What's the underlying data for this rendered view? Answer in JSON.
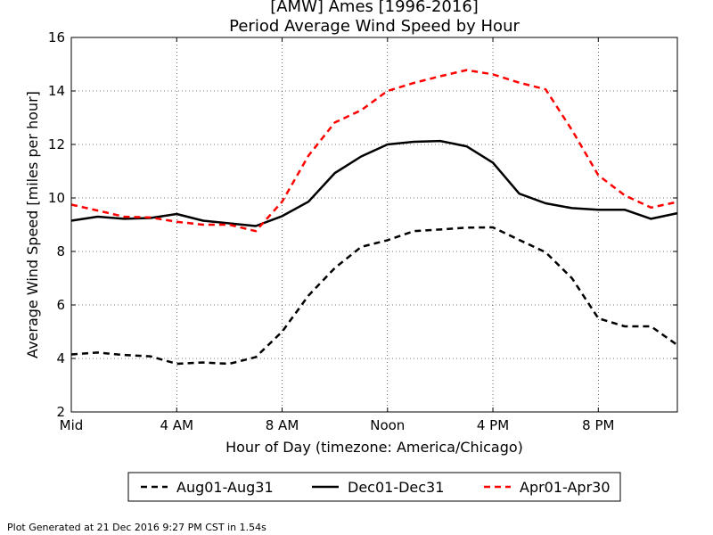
{
  "chart_data": {
    "type": "line",
    "title": "[AMW] Ames [1996-2016]",
    "subtitle": "Period Average Wind Speed by Hour",
    "xlabel": "Hour of Day (timezone: America/Chicago)",
    "ylabel": "Average Wind Speed [miles per hour]",
    "xlim": [
      0,
      23
    ],
    "ylim": [
      2,
      16
    ],
    "x": [
      0,
      1,
      2,
      3,
      4,
      5,
      6,
      7,
      8,
      9,
      10,
      11,
      12,
      13,
      14,
      15,
      16,
      17,
      18,
      19,
      20,
      21,
      22,
      23
    ],
    "xticks": [
      {
        "value": 0,
        "label": "Mid"
      },
      {
        "value": 4,
        "label": "4 AM"
      },
      {
        "value": 8,
        "label": "8 AM"
      },
      {
        "value": 12,
        "label": "Noon"
      },
      {
        "value": 16,
        "label": "4 PM"
      },
      {
        "value": 20,
        "label": "8 PM"
      }
    ],
    "yticks": [
      2,
      4,
      6,
      8,
      10,
      12,
      14,
      16
    ],
    "grid": true,
    "legend_position": "bottom",
    "series": [
      {
        "name": "Aug01-Aug31",
        "color": "#000000",
        "style": "dashed",
        "values": [
          4.15,
          4.22,
          4.13,
          4.08,
          3.8,
          3.85,
          3.8,
          4.05,
          5.0,
          6.35,
          7.38,
          8.17,
          8.42,
          8.76,
          8.82,
          8.89,
          8.9,
          8.43,
          7.97,
          7.0,
          5.5,
          5.2,
          5.2,
          4.5
        ]
      },
      {
        "name": "Dec01-Dec31",
        "color": "#000000",
        "style": "solid",
        "values": [
          9.15,
          9.3,
          9.22,
          9.25,
          9.4,
          9.15,
          9.05,
          8.95,
          9.32,
          9.86,
          10.93,
          11.55,
          12.0,
          12.1,
          12.13,
          11.93,
          11.32,
          10.16,
          9.8,
          9.62,
          9.56,
          9.56,
          9.22,
          9.43
        ]
      },
      {
        "name": "Apr01-Apr30",
        "color": "#ff0000",
        "style": "dashed",
        "values": [
          9.75,
          9.53,
          9.3,
          9.27,
          9.11,
          9.0,
          9.0,
          8.76,
          9.86,
          11.58,
          12.82,
          13.28,
          14.0,
          14.3,
          14.55,
          14.78,
          14.62,
          14.31,
          14.06,
          12.54,
          10.85,
          10.1,
          9.64,
          9.85
        ]
      }
    ]
  },
  "footer": "Plot Generated at 21 Dec 2016 9:27 PM CST in 1.54s"
}
